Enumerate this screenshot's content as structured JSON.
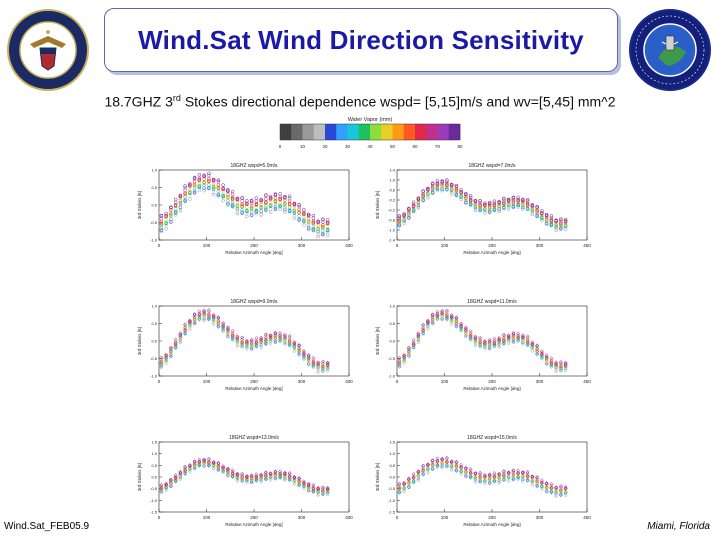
{
  "header": {
    "title": "Wind.Sat Wind Direction Sensitivity",
    "subtitle_pre": "18.7GHZ 3",
    "subtitle_sup": "rd",
    "subtitle_post": " Stokes directional dependence  wspd= [5,15]m/s and wv=[5,45] mm^2"
  },
  "colorbar": {
    "title": "Water Vapor (mm)",
    "ticks": [
      "0",
      "10",
      "20",
      "30",
      "40",
      "50",
      "60",
      "70",
      "80"
    ],
    "colors": [
      "#404040",
      "#6a6a6a",
      "#9a9a9a",
      "#bdbdbd",
      "#2a48d8",
      "#33a0ff",
      "#17c7d8",
      "#20c060",
      "#8adf3a",
      "#e8d024",
      "#ff9a18",
      "#ff5a22",
      "#e02a48",
      "#c02f8a",
      "#9a3cb8",
      "#6a2a9a"
    ]
  },
  "colors": {
    "title_text": "#1a1aa6",
    "title_border": "#5a6aa8",
    "axis": "#222222"
  },
  "logos": {
    "left": "seal-left",
    "right": "seal-right"
  },
  "chart_data": [
    {
      "type": "scatter",
      "title": "18GHZ wspd=5.0m/s",
      "xlabel": "Relative Azimuth Angle [deg]",
      "ylabel": "3rd Stokes [K]",
      "xlim": [
        0,
        400
      ],
      "ylim": [
        -1,
        1
      ],
      "xticks": [
        "0",
        "100",
        "200",
        "300",
        "400"
      ],
      "yticks": [
        "-1.0",
        "-0.5",
        "0.0",
        "0.5",
        "1.0"
      ],
      "amp": 0.75,
      "phase": 40,
      "spread": 0.35,
      "marker": "circle"
    },
    {
      "type": "scatter",
      "title": "18GHZ wspd=7.0m/s",
      "xlabel": "Relative Azimuth Angle [deg]",
      "ylabel": "3rd Stokes [K]",
      "xlim": [
        0,
        400
      ],
      "ylim": [
        -1.4,
        1.4
      ],
      "xticks": [
        "0",
        "100",
        "200",
        "300",
        "400"
      ],
      "yticks": [
        "-1.4",
        "-1.0",
        "-0.6",
        "-0.2",
        "0.2",
        "0.6",
        "1.0",
        "1.4"
      ],
      "amp": 0.9,
      "phase": 40,
      "spread": 0.3,
      "marker": "circle"
    },
    {
      "type": "scatter",
      "title": "18GHZ wspd=9.0m/s",
      "xlabel": "Relative Azimuth Angle [deg]",
      "ylabel": "3rd Stokes [K]",
      "xlim": [
        0,
        400
      ],
      "ylim": [
        -1,
        1
      ],
      "xticks": [
        "0",
        "100",
        "200",
        "300",
        "400"
      ],
      "yticks": [
        "-1.0",
        "-0.5",
        "0.0",
        "0.5",
        "1.0"
      ],
      "amp": 0.85,
      "phase": 40,
      "spread": 0.18,
      "marker": "diamond"
    },
    {
      "type": "scatter",
      "title": "18GHZ wspd=11.0m/s",
      "xlabel": "Relative Azimuth Angle [deg]",
      "ylabel": "3rd Stokes [K]",
      "xlim": [
        0,
        400
      ],
      "ylim": [
        -1,
        1
      ],
      "xticks": [
        "0",
        "100",
        "200",
        "300",
        "400"
      ],
      "yticks": [
        "-1.0",
        "-0.5",
        "0.0",
        "0.5",
        "1.0"
      ],
      "amp": 0.85,
      "phase": 40,
      "spread": 0.16,
      "marker": "diamond"
    },
    {
      "type": "scatter",
      "title": "18GHZ wspd=13.0m/s",
      "xlabel": "Relative Azimuth Angle [deg]",
      "ylabel": "3rd Stokes [K]",
      "xlim": [
        0,
        400
      ],
      "ylim": [
        -1.5,
        1.5
      ],
      "xticks": [
        "0",
        "100",
        "200",
        "300",
        "400"
      ],
      "yticks": [
        "-1.5",
        "-1.0",
        "-0.5",
        "0.0",
        "0.5",
        "1.0",
        "1.5"
      ],
      "amp": 0.7,
      "phase": 40,
      "spread": 0.22,
      "marker": "diamond"
    },
    {
      "type": "scatter",
      "title": "18GHZ wspd=15.0m/s",
      "xlabel": "Relative Azimuth Angle [deg]",
      "ylabel": "3rd Stokes [K]",
      "xlim": [
        0,
        400
      ],
      "ylim": [
        -1.5,
        1.5
      ],
      "xticks": [
        "0",
        "100",
        "200",
        "300",
        "400"
      ],
      "yticks": [
        "-1.5",
        "-1.0",
        "-0.5",
        "0.0",
        "0.5",
        "1.0",
        "1.5"
      ],
      "amp": 0.7,
      "phase": 40,
      "spread": 0.3,
      "marker": "diamond"
    }
  ],
  "footer": {
    "left": "Wind.Sat_FEB05.9",
    "right": "Miami, Florida"
  }
}
